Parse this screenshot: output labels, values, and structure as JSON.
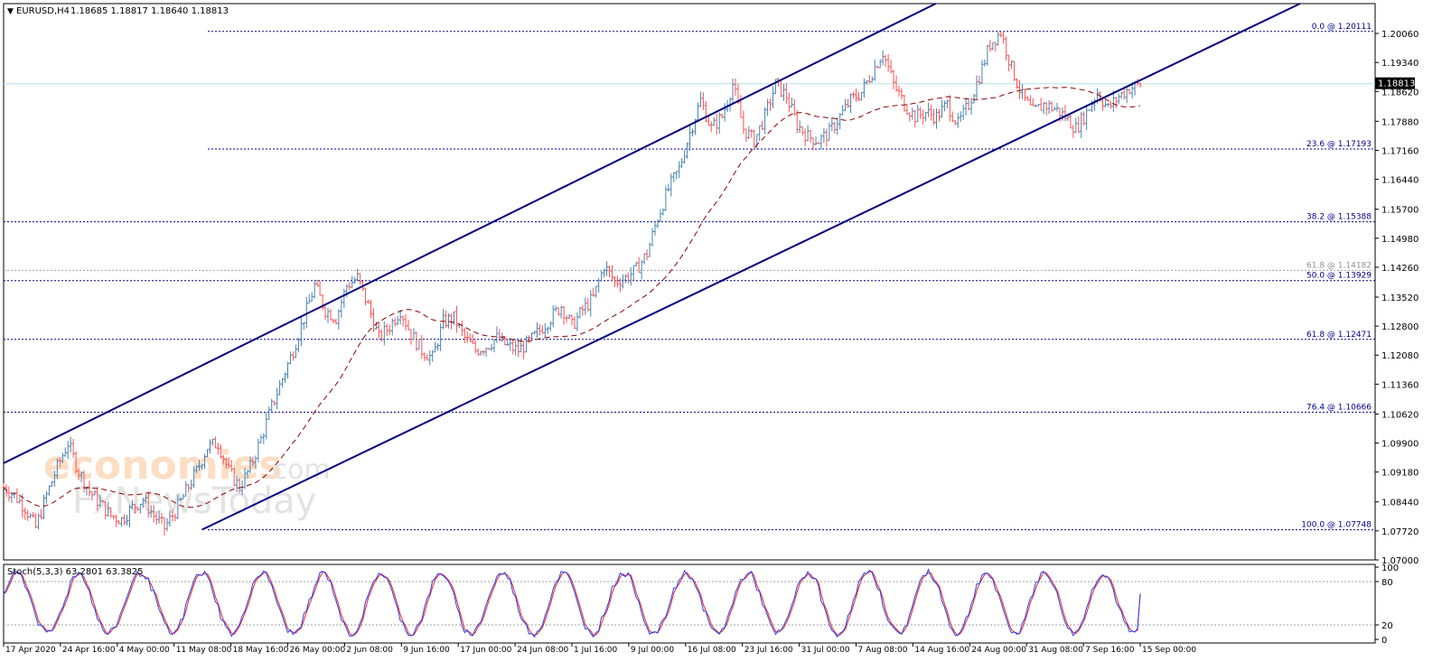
{
  "header": {
    "symbol": "EURUSD,H4",
    "quotes": "1.18685 1.18817 1.18640 1.18813"
  },
  "colors": {
    "channel": "#000080",
    "fib_line": "#00008b",
    "fib_label": "#00008b",
    "bull_candle": "#4682b4",
    "bear_candle": "#ff5050",
    "ma": "#8b0000",
    "price_line": "#b0e0e6",
    "grid": "#c0c0c0",
    "stoch_main": "#2040ff",
    "stoch_signal": "#ff2020",
    "current_price_bg": "#000000",
    "current_price_fg": "#ffffff"
  },
  "chart_data": [
    {
      "type": "candlestick",
      "title": "EURUSD,H4",
      "current_price": "1.18813",
      "y_ticks": [
        "1.20060",
        "1.19340",
        "1.18620",
        "1.17880",
        "1.17160",
        "1.16440",
        "1.15700",
        "1.14980",
        "1.14260",
        "1.13520",
        "1.12800",
        "1.12080",
        "1.11360",
        "1.10620",
        "1.09900",
        "1.09180",
        "1.08440",
        "1.07720",
        "1.07000"
      ],
      "ylim": [
        1.07,
        1.208
      ],
      "x_labels": [
        "17 Apr 2020",
        "24 Apr 16:00",
        "4 May 00:00",
        "11 May 08:00",
        "18 May 16:00",
        "26 May 00:00",
        "2 Jun 08:00",
        "9 Jun 16:00",
        "17 Jun 00:00",
        "24 Jun 08:00",
        "1 Jul 16:00",
        "9 Jul 00:00",
        "16 Jul 08:00",
        "23 Jul 16:00",
        "31 Jul 00:00",
        "7 Aug 08:00",
        "14 Aug 16:00",
        "24 Aug 00:00",
        "31 Aug 08:00",
        "7 Sep 16:00",
        "15 Sep 00:00"
      ],
      "fibonacci": [
        {
          "label": "0.0 @ 1.20111",
          "value": 1.20111
        },
        {
          "label": "23.6 @ 1.17193",
          "value": 1.17193
        },
        {
          "label": "38.2 @ 1.15388",
          "value": 1.15388
        },
        {
          "label": "61.8 @ 1.14182",
          "value": 1.14182,
          "faded": true
        },
        {
          "label": "50.0 @ 1.13929",
          "value": 1.13929
        },
        {
          "label": "61.8 @ 1.12471",
          "value": 1.12471
        },
        {
          "label": "76.4 @ 1.10666",
          "value": 1.10666
        },
        {
          "label": "100.0 @ 1.07748",
          "value": 1.07748
        }
      ],
      "price_path": [
        [
          0,
          1.088
        ],
        [
          2,
          1.086
        ],
        [
          4,
          1.083
        ],
        [
          6,
          1.078
        ],
        [
          8,
          1.086
        ],
        [
          10,
          1.093
        ],
        [
          12,
          1.099
        ],
        [
          14,
          1.092
        ],
        [
          16,
          1.087
        ],
        [
          18,
          1.084
        ],
        [
          20,
          1.081
        ],
        [
          22,
          1.08
        ],
        [
          24,
          1.083
        ],
        [
          26,
          1.085
        ],
        [
          28,
          1.081
        ],
        [
          30,
          1.078
        ],
        [
          32,
          1.082
        ],
        [
          34,
          1.087
        ],
        [
          36,
          1.092
        ],
        [
          38,
          1.098
        ],
        [
          40,
          1.099
        ],
        [
          42,
          1.092
        ],
        [
          44,
          1.088
        ],
        [
          46,
          1.093
        ],
        [
          48,
          1.1
        ],
        [
          50,
          1.108
        ],
        [
          52,
          1.115
        ],
        [
          54,
          1.122
        ],
        [
          56,
          1.13
        ],
        [
          58,
          1.138
        ],
        [
          60,
          1.132
        ],
        [
          62,
          1.13
        ],
        [
          64,
          1.138
        ],
        [
          66,
          1.14
        ],
        [
          68,
          1.133
        ],
        [
          70,
          1.125
        ],
        [
          72,
          1.128
        ],
        [
          74,
          1.132
        ],
        [
          76,
          1.126
        ],
        [
          78,
          1.122
        ],
        [
          80,
          1.12
        ],
        [
          82,
          1.129
        ],
        [
          84,
          1.13
        ],
        [
          86,
          1.125
        ],
        [
          88,
          1.122
        ],
        [
          90,
          1.123
        ],
        [
          92,
          1.125
        ],
        [
          94,
          1.123
        ],
        [
          96,
          1.122
        ],
        [
          98,
          1.124
        ],
        [
          100,
          1.127
        ],
        [
          102,
          1.13
        ],
        [
          104,
          1.133
        ],
        [
          106,
          1.128
        ],
        [
          108,
          1.132
        ],
        [
          110,
          1.135
        ],
        [
          112,
          1.143
        ],
        [
          114,
          1.139
        ],
        [
          116,
          1.14
        ],
        [
          118,
          1.142
        ],
        [
          120,
          1.146
        ],
        [
          122,
          1.155
        ],
        [
          124,
          1.162
        ],
        [
          126,
          1.167
        ],
        [
          128,
          1.176
        ],
        [
          130,
          1.184
        ],
        [
          132,
          1.177
        ],
        [
          134,
          1.18
        ],
        [
          136,
          1.188
        ],
        [
          138,
          1.177
        ],
        [
          140,
          1.174
        ],
        [
          142,
          1.18
        ],
        [
          144,
          1.188
        ],
        [
          146,
          1.185
        ],
        [
          148,
          1.178
        ],
        [
          150,
          1.175
        ],
        [
          152,
          1.174
        ],
        [
          154,
          1.176
        ],
        [
          156,
          1.18
        ],
        [
          158,
          1.184
        ],
        [
          160,
          1.186
        ],
        [
          162,
          1.191
        ],
        [
          164,
          1.196
        ],
        [
          166,
          1.188
        ],
        [
          168,
          1.183
        ],
        [
          170,
          1.18
        ],
        [
          172,
          1.181
        ],
        [
          174,
          1.18
        ],
        [
          176,
          1.183
        ],
        [
          178,
          1.178
        ],
        [
          180,
          1.183
        ],
        [
          182,
          1.19
        ],
        [
          184,
          1.198
        ],
        [
          186,
          1.201
        ],
        [
          188,
          1.192
        ],
        [
          190,
          1.185
        ],
        [
          192,
          1.181
        ],
        [
          194,
          1.183
        ],
        [
          196,
          1.182
        ],
        [
          198,
          1.18
        ],
        [
          200,
          1.177
        ],
        [
          202,
          1.181
        ],
        [
          204,
          1.186
        ],
        [
          206,
          1.182
        ],
        [
          208,
          1.185
        ],
        [
          210,
          1.187
        ],
        [
          212,
          1.188
        ]
      ],
      "channel": {
        "upper": [
          [
            0,
            1.094
          ],
          [
            212,
            1.233
          ]
        ],
        "lower": [
          [
            37,
            1.0775
          ],
          [
            212,
            1.189
          ]
        ]
      },
      "moving_average": "dashed"
    },
    {
      "type": "line",
      "title": "Stoch(5,3,3) 63.2801 63.3825",
      "ylim": [
        0,
        100
      ],
      "y_ticks": [
        "100",
        "80",
        "20",
        "0"
      ],
      "levels": [
        80,
        20
      ],
      "series": [
        {
          "name": "Stoch(5,3,3) main",
          "value": 63.2801
        },
        {
          "name": "Stoch(5,3,3) signal",
          "value": 63.3825
        }
      ]
    }
  ]
}
